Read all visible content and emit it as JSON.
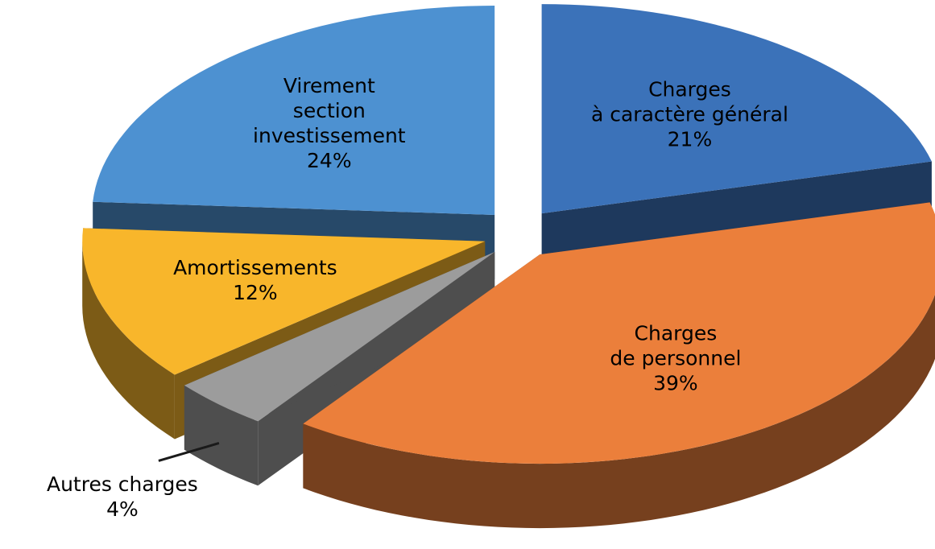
{
  "chart_data": {
    "type": "pie3d",
    "categories": [
      "Charges\nà caractère général",
      "Charges\nde personnel",
      "Autres charges",
      "Amortissements",
      "Virement\nsection\ninvestissement"
    ],
    "values": [
      21,
      39,
      4,
      12,
      24
    ],
    "value_labels": [
      "21%",
      "39%",
      "4%",
      "12%",
      "24%"
    ],
    "colors": [
      "#3b72b9",
      "#eb7f3b",
      "#9c9c9c",
      "#f8b62b",
      "#4d91d1"
    ]
  }
}
